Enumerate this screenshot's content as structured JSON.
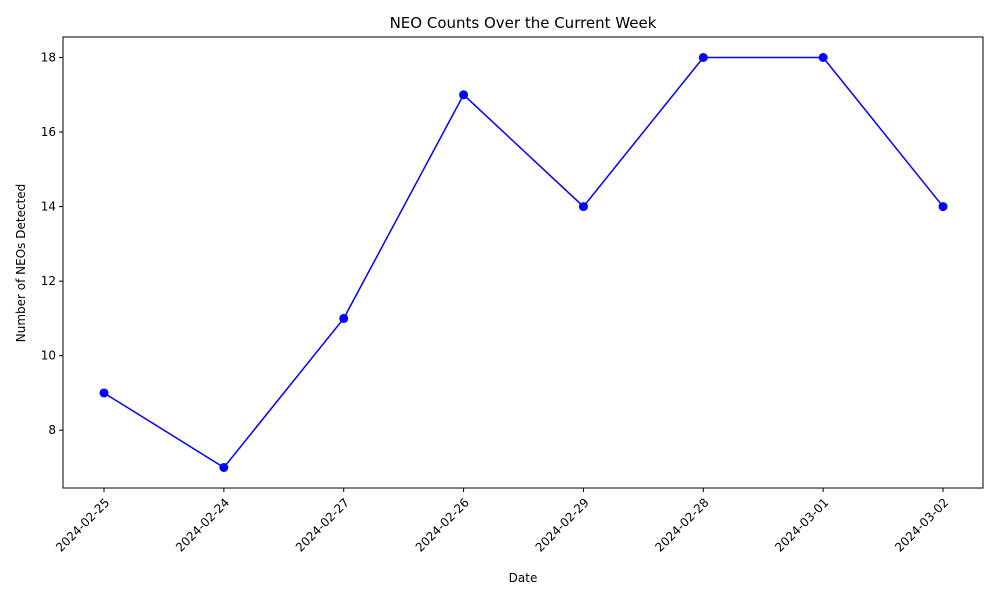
{
  "chart_data": {
    "type": "line",
    "title": "NEO Counts Over the Current Week",
    "xlabel": "Date",
    "ylabel": "Number of NEOs Detected",
    "categories": [
      "2024-02-25",
      "2024-02-24",
      "2024-02-27",
      "2024-02-26",
      "2024-02-29",
      "2024-02-28",
      "2024-03-01",
      "2024-03-02"
    ],
    "series": [
      {
        "values": [
          9,
          7,
          11,
          17,
          14,
          18,
          18,
          14
        ],
        "color": "#0000ff",
        "marker": "circle"
      }
    ],
    "yticks": [
      8,
      10,
      12,
      14,
      16,
      18
    ],
    "ylim": [
      6.45,
      18.55
    ],
    "grid": false,
    "legend": "none",
    "x_tick_rotation_deg": 45
  }
}
